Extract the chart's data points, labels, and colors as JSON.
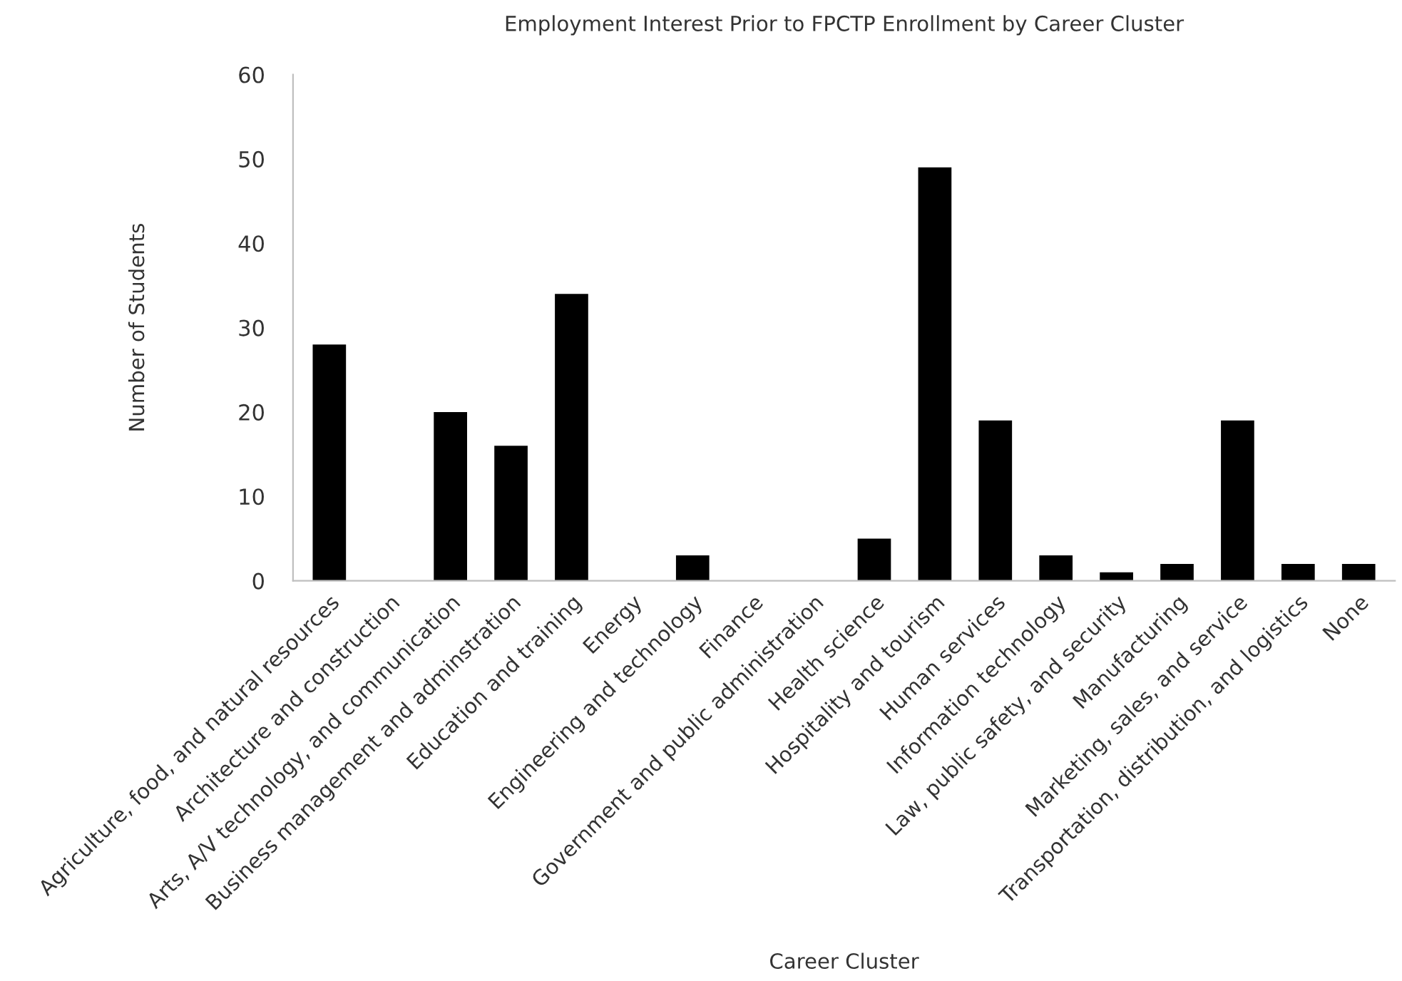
{
  "chart_data": {
    "type": "bar",
    "title": "Employment Interest Prior to FPCTP Enrollment by Career Cluster",
    "xlabel": "Career Cluster",
    "ylabel": "Number of Students",
    "categories": [
      "Agriculture, food, and natural resources",
      "Architecture and construction",
      "Arts, A/V technology, and communication",
      "Business management and adminstration",
      "Education and training",
      "Energy",
      "Engineering and technology",
      "Finance",
      "Government and public administration",
      "Health science",
      "Hospitality and tourism",
      "Human services",
      "Information technology",
      "Law, public safety, and security",
      "Manufacturing",
      "Marketing, sales, and service",
      "Transportation, distribution, and logistics",
      "None"
    ],
    "values": [
      28,
      0,
      20,
      16,
      34,
      0,
      3,
      0,
      0,
      5,
      49,
      19,
      3,
      1,
      2,
      19,
      2,
      2
    ],
    "color": "#000000",
    "ylim": [
      0,
      60
    ],
    "yticks": [
      0,
      10,
      20,
      30,
      40,
      50,
      60
    ],
    "grid": false,
    "legend": false
  }
}
